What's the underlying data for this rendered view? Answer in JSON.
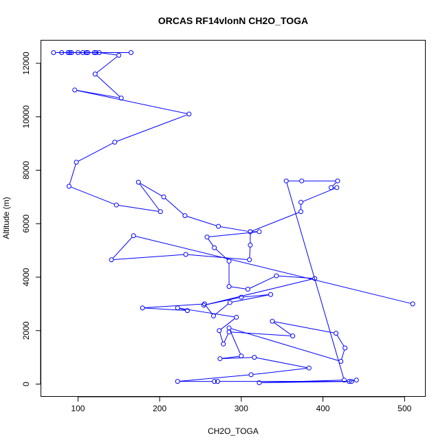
{
  "chart_data": {
    "type": "line",
    "title": "ORCAS RF14vlonN CH2O_TOGA",
    "xlabel": "CH2O_TOGA",
    "ylabel": "Altitude (m)",
    "xlim": [
      55,
      525
    ],
    "ylim": [
      -450,
      12850
    ],
    "xticks": [
      100,
      200,
      300,
      400,
      500
    ],
    "yticks": [
      0,
      2000,
      4000,
      6000,
      8000,
      10000,
      12000
    ],
    "grid": false,
    "legend": "none",
    "line_color": "#0000ff",
    "marker": "open-circle",
    "series": [
      {
        "x": [
          165,
          70,
          80,
          88,
          90,
          92,
          100,
          106,
          110,
          112,
          120,
          122,
          126,
          150,
          121,
          153,
          96,
          236,
          145,
          98,
          89,
          147,
          201,
          174,
          205,
          231,
          272,
          311,
          322,
          258,
          267,
          285,
          285,
          308,
          343,
          390,
          254,
          300,
          336,
          286,
          266,
          255,
          179,
          234,
          222,
          294,
          273,
          278,
          285,
          363,
          338,
          416,
          427,
          422,
          285,
          300,
          274,
          316,
          383,
          312,
          222,
          267,
          271,
          432,
          441,
          435,
          322,
          426,
          355,
          374,
          418,
          410,
          417,
          373,
          373,
          311,
          311,
          310,
          232,
          141,
          168,
          510
        ],
        "y": [
          12400,
          12400,
          12400,
          12400,
          12400,
          12400,
          12400,
          12400,
          12400,
          12400,
          12400,
          12400,
          12400,
          12300,
          11600,
          10700,
          11000,
          10100,
          9050,
          8300,
          7400,
          6700,
          6450,
          7550,
          7000,
          6300,
          5900,
          5700,
          5700,
          5500,
          5100,
          4600,
          3650,
          3550,
          4050,
          3950,
          2950,
          3250,
          3350,
          3050,
          2550,
          3000,
          2850,
          2750,
          2850,
          2500,
          2000,
          1500,
          1950,
          1800,
          2350,
          1900,
          1350,
          850,
          2100,
          1050,
          950,
          1000,
          600,
          350,
          100,
          100,
          100,
          100,
          150,
          100,
          50,
          150,
          7600,
          7600,
          7600,
          7350,
          7350,
          6800,
          6450,
          5700,
          5200,
          4650,
          4850,
          4650,
          5550,
          3000
        ]
      }
    ]
  }
}
